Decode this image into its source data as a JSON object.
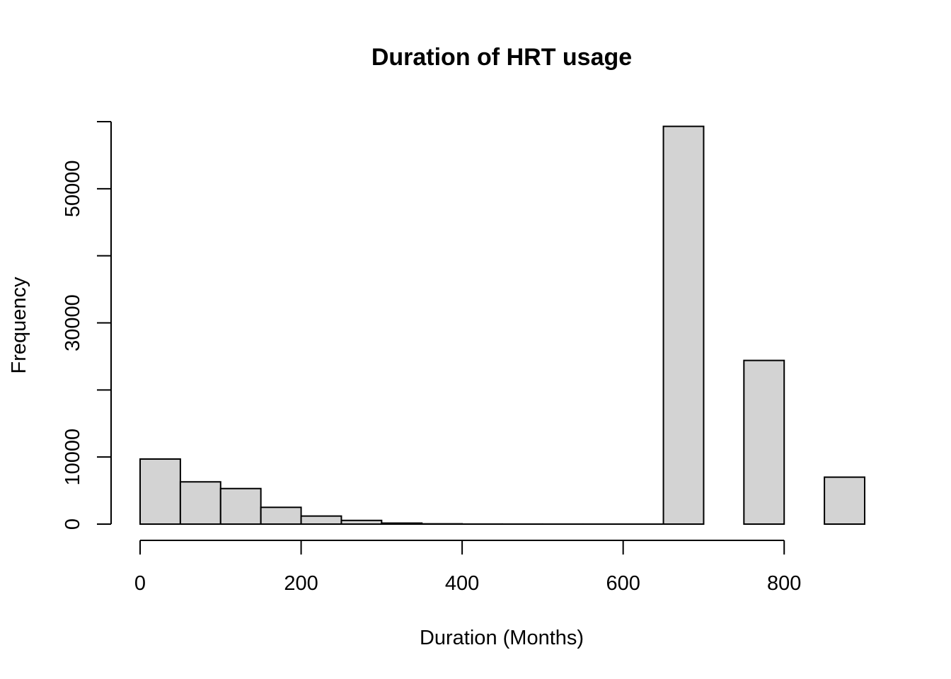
{
  "chart_data": {
    "type": "bar",
    "title": "Duration of HRT usage",
    "xlabel": "Duration (Months)",
    "ylabel": "Frequency",
    "bin_width": 50,
    "bins": [
      {
        "x0": 0,
        "x1": 50,
        "count": 9700
      },
      {
        "x0": 50,
        "x1": 100,
        "count": 6300
      },
      {
        "x0": 100,
        "x1": 150,
        "count": 5300
      },
      {
        "x0": 150,
        "x1": 200,
        "count": 2500
      },
      {
        "x0": 200,
        "x1": 250,
        "count": 1200
      },
      {
        "x0": 250,
        "x1": 300,
        "count": 550
      },
      {
        "x0": 300,
        "x1": 350,
        "count": 150
      },
      {
        "x0": 350,
        "x1": 400,
        "count": 40
      },
      {
        "x0": 400,
        "x1": 450,
        "count": 10
      },
      {
        "x0": 450,
        "x1": 500,
        "count": 5
      },
      {
        "x0": 500,
        "x1": 550,
        "count": 3
      },
      {
        "x0": 550,
        "x1": 600,
        "count": 2
      },
      {
        "x0": 600,
        "x1": 650,
        "count": 1
      },
      {
        "x0": 650,
        "x1": 700,
        "count": 59300
      },
      {
        "x0": 700,
        "x1": 750,
        "count": 0
      },
      {
        "x0": 750,
        "x1": 800,
        "count": 24400
      },
      {
        "x0": 800,
        "x1": 850,
        "count": 0
      },
      {
        "x0": 850,
        "x1": 900,
        "count": 7000
      }
    ],
    "xlim": [
      0,
      900
    ],
    "ylim": [
      0,
      60000
    ],
    "x_ticks": [
      0,
      200,
      400,
      600,
      800
    ],
    "x_tick_labels": [
      "0",
      "200",
      "400",
      "600",
      "800"
    ],
    "y_ticks": [
      0,
      10000,
      20000,
      30000,
      40000,
      50000,
      60000
    ],
    "y_tick_labels": [
      "0",
      "10000",
      "",
      "30000",
      "",
      "50000",
      ""
    ],
    "bar_fill": "#d3d3d3",
    "bar_stroke": "#000000",
    "grid": false,
    "legend": "none"
  }
}
